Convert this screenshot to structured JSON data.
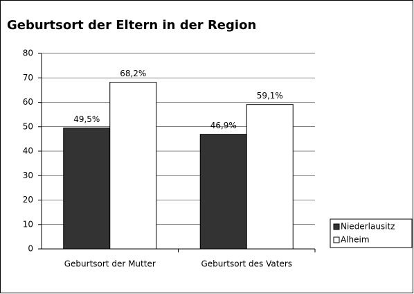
{
  "chart_data": {
    "type": "bar",
    "title": "Geburtsort der Eltern in der Region",
    "categories": [
      "Geburtsort der Mutter",
      "Geburtsort des Vaters"
    ],
    "series": [
      {
        "name": "Niederlausitz",
        "color": "#333333",
        "values": [
          49.5,
          46.9
        ],
        "value_labels": [
          "49,5%",
          "46,9%"
        ]
      },
      {
        "name": "Alheim",
        "color": "#ffffff",
        "values": [
          68.2,
          59.1
        ],
        "value_labels": [
          "68,2%",
          "59,1%"
        ]
      }
    ],
    "ylim": [
      0,
      80
    ],
    "yticks": [
      0,
      10,
      20,
      30,
      40,
      50,
      60,
      70,
      80
    ],
    "grid": true,
    "legend": "right"
  }
}
